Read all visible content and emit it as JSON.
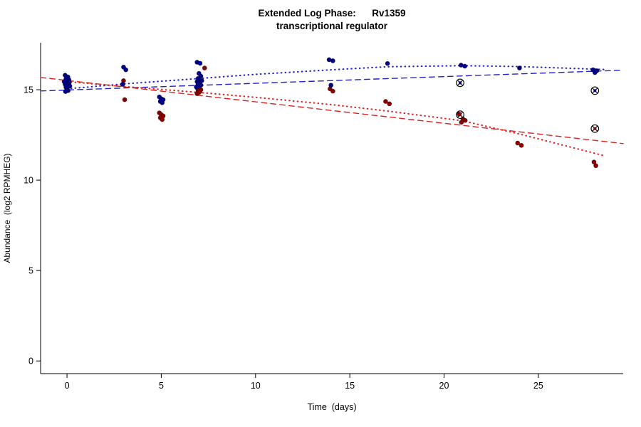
{
  "chart_data": {
    "type": "scatter",
    "title_line1": "Extended Log Phase:      Rv1359",
    "title_line2": "transcriptional regulator",
    "xlabel": "Time  (days)",
    "ylabel": "Abundance  (log2 RPMHEG)",
    "xlim": [
      -1.4,
      29.5
    ],
    "ylim": [
      -0.7,
      17.6
    ],
    "xticks": [
      0,
      5,
      10,
      15,
      20,
      25
    ],
    "yticks": [
      0,
      5,
      10,
      15
    ],
    "grid": false,
    "legend": "none",
    "colors": {
      "blue_points": "#00008B",
      "red_points": "#8B0000",
      "blue_lines": "#2222CC",
      "red_lines": "#DD2222",
      "flag_outline": "#000000"
    },
    "series": [
      {
        "name": "red-points",
        "color": "#8B0000",
        "points": [
          [
            0.0,
            15.52
          ],
          [
            -0.1,
            15.42
          ],
          [
            0.1,
            15.32
          ],
          [
            0.05,
            15.22
          ],
          [
            -0.05,
            15.12
          ],
          [
            0.0,
            15.02
          ],
          [
            3.0,
            15.5
          ],
          [
            3.06,
            14.45
          ],
          [
            4.9,
            13.72
          ],
          [
            5.0,
            13.62
          ],
          [
            5.1,
            13.55
          ],
          [
            4.95,
            13.45
          ],
          [
            5.05,
            13.35
          ],
          [
            7.3,
            16.2
          ],
          [
            6.9,
            15.1
          ],
          [
            7.0,
            15.05
          ],
          [
            7.1,
            15.0
          ],
          [
            6.95,
            14.95
          ],
          [
            7.05,
            14.9
          ],
          [
            7.0,
            14.85
          ],
          [
            6.9,
            14.78
          ],
          [
            13.95,
            15.05
          ],
          [
            14.1,
            14.92
          ],
          [
            16.9,
            14.35
          ],
          [
            17.1,
            14.22
          ],
          [
            20.8,
            13.65
          ],
          [
            21.0,
            13.38
          ],
          [
            21.12,
            13.3
          ],
          [
            20.92,
            13.2
          ],
          [
            23.9,
            12.05
          ],
          [
            24.1,
            11.92
          ],
          [
            27.95,
            11.0
          ],
          [
            28.05,
            10.8
          ]
        ]
      },
      {
        "name": "blue-points",
        "color": "#00008B",
        "points": [
          [
            -0.1,
            15.8
          ],
          [
            0.05,
            15.7
          ],
          [
            -0.05,
            15.6
          ],
          [
            0.1,
            15.55
          ],
          [
            0.0,
            15.5
          ],
          [
            -0.15,
            15.45
          ],
          [
            0.12,
            15.4
          ],
          [
            0.0,
            15.35
          ],
          [
            -0.1,
            15.3
          ],
          [
            0.05,
            15.25
          ],
          [
            0.15,
            15.2
          ],
          [
            -0.05,
            15.15
          ],
          [
            0.0,
            15.05
          ],
          [
            0.06,
            14.95
          ],
          [
            -0.08,
            14.9
          ],
          [
            3.0,
            16.25
          ],
          [
            3.12,
            16.1
          ],
          [
            2.95,
            15.3
          ],
          [
            4.9,
            14.6
          ],
          [
            5.0,
            14.5
          ],
          [
            5.1,
            14.45
          ],
          [
            4.95,
            14.35
          ],
          [
            5.05,
            14.28
          ],
          [
            6.9,
            16.52
          ],
          [
            7.06,
            16.46
          ],
          [
            7.0,
            15.9
          ],
          [
            7.1,
            15.75
          ],
          [
            6.95,
            15.62
          ],
          [
            7.02,
            15.55
          ],
          [
            7.15,
            15.5
          ],
          [
            6.9,
            15.45
          ],
          [
            7.05,
            15.4
          ],
          [
            7.0,
            15.35
          ],
          [
            6.95,
            15.3
          ],
          [
            7.1,
            15.25
          ],
          [
            7.0,
            15.2
          ],
          [
            6.86,
            15.15
          ],
          [
            13.9,
            16.66
          ],
          [
            14.1,
            16.6
          ],
          [
            14.0,
            15.25
          ],
          [
            17.0,
            16.45
          ],
          [
            20.9,
            16.36
          ],
          [
            21.1,
            16.3
          ],
          [
            24.0,
            16.2
          ],
          [
            27.9,
            16.1
          ],
          [
            28.1,
            16.05
          ],
          [
            28.0,
            15.95
          ]
        ]
      },
      {
        "name": "flagged-points",
        "marker": "circle-x",
        "outline": "#000000",
        "points": [
          [
            20.85,
            15.38,
            "#00008B"
          ],
          [
            20.85,
            13.62,
            "#8B0000"
          ],
          [
            28.0,
            14.95,
            "#00008B"
          ],
          [
            28.0,
            12.85,
            "#8B0000"
          ]
        ]
      }
    ],
    "lines": [
      {
        "name": "blue-fit-dashed",
        "color": "#2222CC",
        "style": "longdash",
        "points": [
          [
            -1.4,
            14.93
          ],
          [
            29.5,
            16.08
          ]
        ]
      },
      {
        "name": "blue-fit-dotted",
        "color": "#2222CC",
        "style": "dotted",
        "points": [
          [
            0,
            15.05
          ],
          [
            3,
            15.32
          ],
          [
            7,
            15.62
          ],
          [
            10,
            15.85
          ],
          [
            14,
            16.1
          ],
          [
            17,
            16.27
          ],
          [
            21,
            16.33
          ],
          [
            24,
            16.28
          ],
          [
            28.5,
            16.12
          ]
        ]
      },
      {
        "name": "red-fit-dashed",
        "color": "#DD2222",
        "style": "longdash",
        "points": [
          [
            -1.4,
            15.68
          ],
          [
            29.5,
            12.02
          ]
        ]
      },
      {
        "name": "red-fit-dotted",
        "color": "#DD2222",
        "style": "dotted",
        "points": [
          [
            0,
            15.45
          ],
          [
            3,
            15.18
          ],
          [
            7,
            14.85
          ],
          [
            10,
            14.58
          ],
          [
            14,
            14.18
          ],
          [
            17,
            13.82
          ],
          [
            21,
            13.28
          ],
          [
            24,
            12.55
          ],
          [
            28.5,
            11.35
          ]
        ]
      }
    ]
  }
}
